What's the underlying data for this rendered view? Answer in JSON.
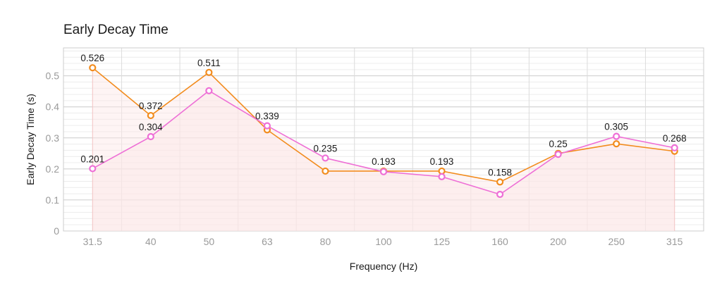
{
  "chart_data": {
    "type": "line",
    "title": "Early Decay Time",
    "xlabel": "Frequency (Hz)",
    "ylabel": "Early Decay Time (s)",
    "categories": [
      "31.5",
      "40",
      "50",
      "63",
      "80",
      "100",
      "125",
      "160",
      "200",
      "250",
      "315"
    ],
    "ylim": [
      0,
      0.59
    ],
    "yticks": [
      "0",
      "0.1",
      "0.2",
      "0.3",
      "0.4",
      "0.5"
    ],
    "grid": true,
    "series": [
      {
        "color": "#f28c1e",
        "values": [
          0.526,
          0.372,
          0.511,
          0.326,
          0.193,
          0.193,
          0.193,
          0.158,
          0.25,
          0.281,
          0.257
        ],
        "labels": [
          "0.526",
          "0.372",
          "0.511",
          "",
          "",
          "0.193",
          "0.193",
          "0.158",
          "0.25",
          "",
          ""
        ]
      },
      {
        "color": "#ee6fd6",
        "values": [
          0.201,
          0.304,
          0.452,
          0.339,
          0.235,
          0.191,
          0.175,
          0.118,
          0.247,
          0.305,
          0.268
        ],
        "labels": [
          "0.201",
          "0.304",
          "",
          "0.339",
          "0.235",
          "",
          "",
          "",
          "",
          "0.305",
          "0.268"
        ]
      }
    ],
    "area_fill_color": "#fde6e6"
  }
}
